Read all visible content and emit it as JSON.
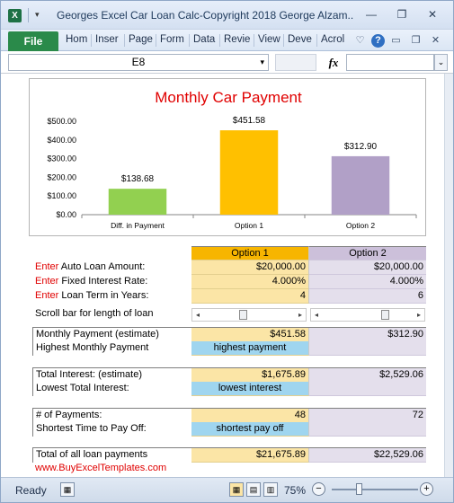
{
  "window": {
    "title": "Georges Excel Car Loan Calc-Copyright 2018 George Alzam...",
    "app_icon": "X"
  },
  "ribbon": {
    "file_tab": "File",
    "tabs": [
      "Hom",
      "Inser",
      "Page",
      "Form",
      "Data",
      "Revie",
      "View",
      "Deve",
      "Acrol"
    ]
  },
  "formula_bar": {
    "name_box": "E8",
    "fx_label": "fx",
    "formula": ""
  },
  "chart_data": {
    "type": "bar",
    "title": "Monthly Car Payment",
    "categories": [
      "Diff. in Payment",
      "Option 1",
      "Option 2"
    ],
    "values": [
      138.68,
      451.58,
      312.9
    ],
    "data_labels": [
      "$138.68",
      "$451.58",
      "$312.90"
    ],
    "colors": [
      "#92d050",
      "#ffc000",
      "#b1a0c7"
    ],
    "ylim": [
      0,
      500
    ],
    "y_ticks": [
      "$0.00",
      "$100.00",
      "$200.00",
      "$300.00",
      "$400.00",
      "$500.00"
    ],
    "y_tick_values": [
      0,
      100,
      200,
      300,
      400,
      500
    ],
    "grid": false,
    "legend": "none"
  },
  "table": {
    "header": {
      "option1": "Option 1",
      "option2": "Option 2"
    },
    "enter_word": "Enter",
    "inputs": [
      {
        "label": " Auto Loan Amount:",
        "o1": "$20,000.00",
        "o2": "$20,000.00"
      },
      {
        "label": " Fixed Interest Rate:",
        "o1": "4.000%",
        "o2": "4.000%"
      },
      {
        "label": " Loan Term in Years:",
        "o1": "4",
        "o2": "6"
      }
    ],
    "scroll_label": "Scroll bar for length of loan",
    "scroll_levels": {
      "option1": 0.43,
      "option2": 0.71
    },
    "monthly_label": "Monthly Payment (estimate)",
    "monthly": {
      "o1": "$451.58",
      "o2": "$312.90"
    },
    "highest_label": "Highest Monthly Payment",
    "highest_value": "highest payment",
    "interest_label": "Total Interest: (estimate)",
    "interest": {
      "o1": "$1,675.89",
      "o2": "$2,529.06"
    },
    "lowest_label": "Lowest Total Interest:",
    "lowest_value": "lowest interest",
    "payments_label": "# of Payments:",
    "payments": {
      "o1": "48",
      "o2": "72"
    },
    "shortest_label": "Shortest Time to Pay Off:",
    "shortest_value": "shortest pay off",
    "total_label": "Total of all loan payments",
    "total": {
      "o1": "$21,675.89",
      "o2": "$22,529.06"
    }
  },
  "website": "www.BuyExcelTemplates.com",
  "status_bar": {
    "status": "Ready",
    "zoom": "75%",
    "zoom_level": 0.75
  }
}
